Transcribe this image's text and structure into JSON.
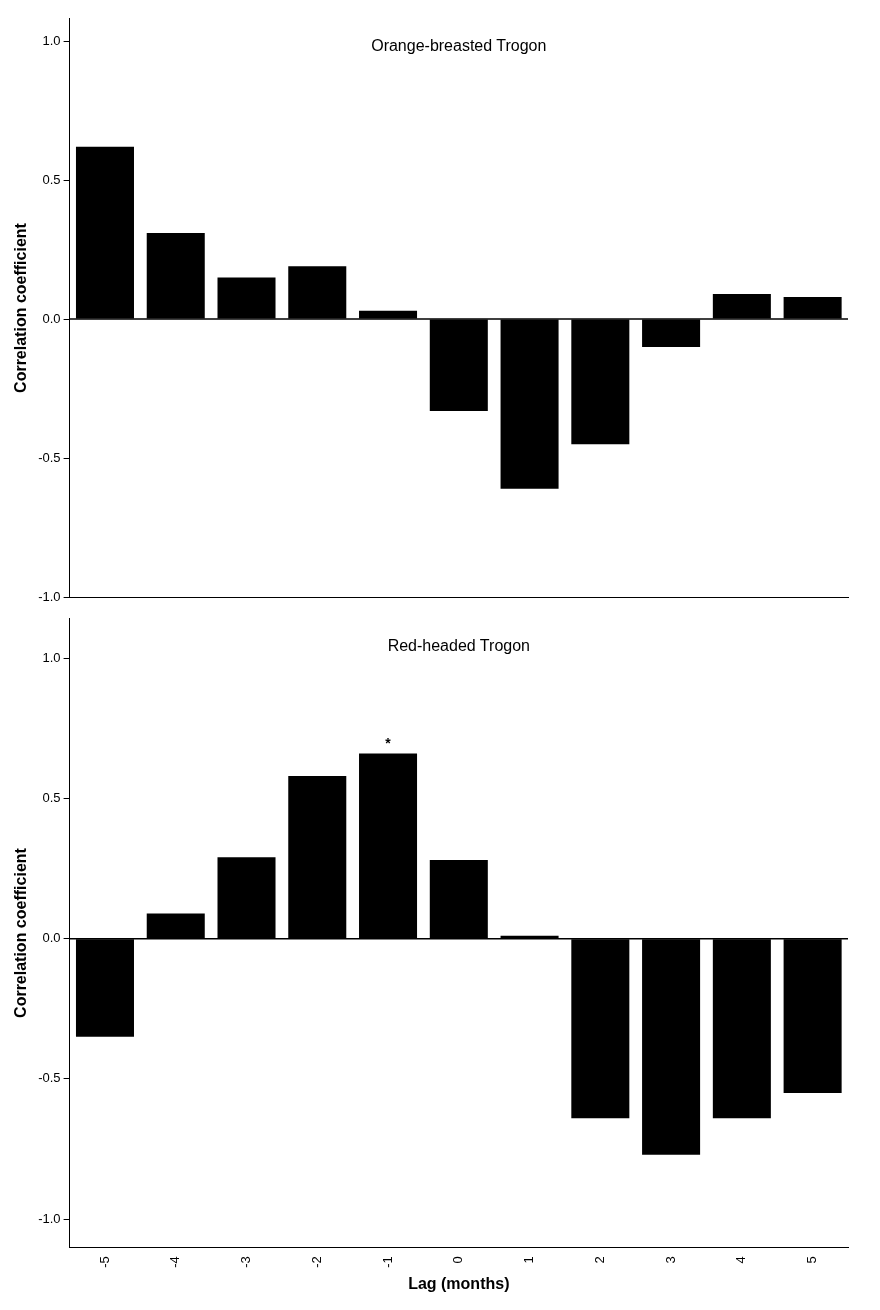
{
  "chart_data": [
    {
      "type": "bar",
      "title": "Orange-breasted Trogon",
      "ylabel": "Correlation coefficient",
      "categories": [
        "-5",
        "-4",
        "-3",
        "-2",
        "-1",
        "0",
        "1",
        "2",
        "3",
        "4",
        "5"
      ],
      "series": [
        {
          "color": "#000000",
          "values": [
            0.62,
            0.31,
            0.15,
            0.19,
            0.03,
            -0.33,
            -0.61,
            -0.45,
            -0.1,
            0.09,
            0.08
          ]
        }
      ],
      "ylim": [
        -1,
        1.08
      ],
      "yticks": [
        {
          "value": -1,
          "label": "-1.0"
        },
        {
          "value": -0.5,
          "label": "-0.5"
        },
        {
          "value": 0,
          "label": "0.0"
        },
        {
          "value": 0.5,
          "label": "0.5"
        },
        {
          "value": 1,
          "label": "1.0"
        }
      ],
      "ref_lines": [
        {
          "axis": "y",
          "value": 0,
          "color": "#000000"
        }
      ],
      "grid": false,
      "legend": false,
      "tick_labels": "y"
    },
    {
      "type": "bar",
      "title": "Red-headed Trogon",
      "ylabel": "Correlation coefficient",
      "xlabel": "Lag (months)",
      "categories": [
        "-5",
        "-4",
        "-3",
        "-2",
        "-1",
        "0",
        "1",
        "2",
        "3",
        "4",
        "5"
      ],
      "series": [
        {
          "color": "#000000",
          "values": [
            -0.35,
            0.09,
            0.29,
            0.58,
            0.66,
            0.28,
            0.01,
            -0.64,
            -0.77,
            -0.64,
            -0.55
          ]
        }
      ],
      "ylim": [
        -1.1,
        1.14
      ],
      "yticks": [
        {
          "value": -1,
          "label": "-1.0"
        },
        {
          "value": -0.5,
          "label": "-0.5"
        },
        {
          "value": 0,
          "label": "0.0"
        },
        {
          "value": 0.5,
          "label": "0.5"
        },
        {
          "value": 1,
          "label": "1.0"
        }
      ],
      "ref_lines": [
        {
          "axis": "y",
          "value": 0,
          "color": "#000000"
        }
      ],
      "annotations": [
        {
          "text": "*",
          "x": "-1",
          "y": 0.66
        }
      ],
      "grid": false,
      "legend": false
    }
  ]
}
